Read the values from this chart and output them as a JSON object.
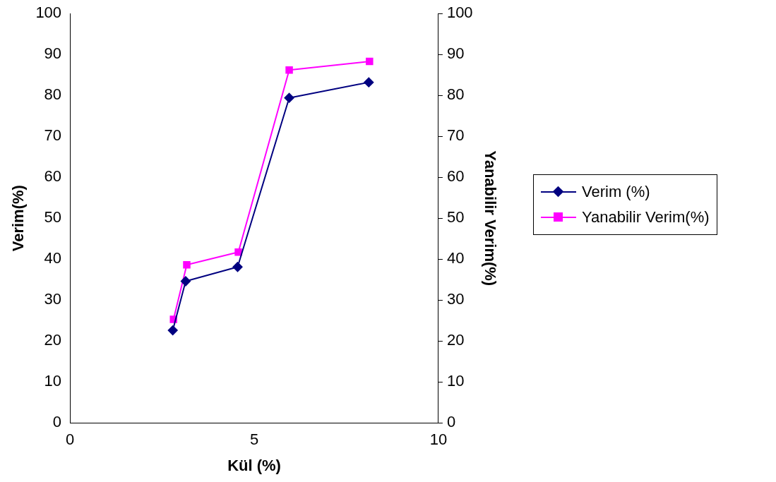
{
  "chart_data": {
    "type": "line",
    "xlabel": "Kül (%)",
    "ylabel": "Verim(%)",
    "y2label": "Yanabilir Verim(%)",
    "xlim": [
      0,
      10
    ],
    "xticks": [
      0,
      5,
      10
    ],
    "ylim": [
      0,
      100
    ],
    "yticks": [
      0,
      10,
      20,
      30,
      40,
      50,
      60,
      70,
      80,
      90,
      100
    ],
    "y2lim": [
      0,
      100
    ],
    "y2ticks": [
      0,
      10,
      20,
      30,
      40,
      50,
      60,
      70,
      80,
      90,
      100
    ],
    "grid": false,
    "legend": "right",
    "series": [
      {
        "name": "Verim (%)",
        "color": "#000080",
        "marker": "diamond",
        "x": [
          2.79,
          3.14,
          4.55,
          5.95,
          8.11
        ],
        "values": [
          22.6,
          34.6,
          38.1,
          79.4,
          83.2
        ]
      },
      {
        "name": "Yanabilir Verim(%)",
        "color": "#ff00ff",
        "marker": "square",
        "axis": "y2",
        "x": [
          2.81,
          3.17,
          4.57,
          5.95,
          8.13
        ],
        "values": [
          25.3,
          38.6,
          41.7,
          86.2,
          88.3
        ]
      }
    ]
  }
}
